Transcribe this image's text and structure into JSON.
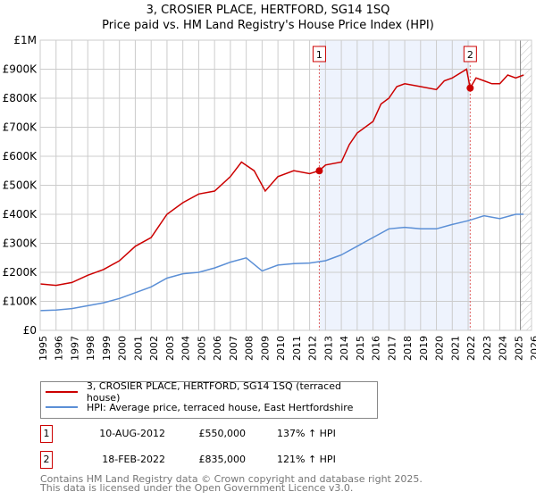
{
  "chart_data": {
    "type": "line",
    "title": "3, CROSIER PLACE, HERTFORD, SG14 1SQ",
    "subtitle": "Price paid vs. HM Land Registry's House Price Index (HPI)",
    "xlim": [
      1995,
      2026
    ],
    "ylim": [
      0,
      1000000
    ],
    "x_ticks": [
      "1995",
      "1996",
      "1997",
      "1998",
      "1999",
      "2000",
      "2001",
      "2002",
      "2003",
      "2004",
      "2005",
      "2006",
      "2007",
      "2008",
      "2009",
      "2010",
      "2011",
      "2012",
      "2013",
      "2014",
      "2015",
      "2016",
      "2017",
      "2018",
      "2019",
      "2020",
      "2021",
      "2022",
      "2023",
      "2024",
      "2025",
      "2026"
    ],
    "y_ticks": [
      {
        "v": 0,
        "label": "£0"
      },
      {
        "v": 100000,
        "label": "£100K"
      },
      {
        "v": 200000,
        "label": "£200K"
      },
      {
        "v": 300000,
        "label": "£300K"
      },
      {
        "v": 400000,
        "label": "£400K"
      },
      {
        "v": 500000,
        "label": "£500K"
      },
      {
        "v": 600000,
        "label": "£600K"
      },
      {
        "v": 700000,
        "label": "£700K"
      },
      {
        "v": 800000,
        "label": "£800K"
      },
      {
        "v": 900000,
        "label": "£900K"
      },
      {
        "v": 1000000,
        "label": "£1M"
      }
    ],
    "grid": true,
    "series": [
      {
        "name": "3, CROSIER PLACE, HERTFORD, SG14 1SQ (terraced house)",
        "color": "#cc0000",
        "x": [
          1995,
          1996,
          1997,
          1998,
          1999,
          2000,
          2001,
          2002,
          2003,
          2004,
          2005,
          2006,
          2007,
          2007.7,
          2008.5,
          2009.2,
          2010,
          2011,
          2012,
          2012.6,
          2013,
          2014,
          2014.5,
          2015,
          2016,
          2016.5,
          2017,
          2017.5,
          2018,
          2019,
          2020,
          2020.5,
          2021,
          2021.9,
          2022.13,
          2022.5,
          2023,
          2023.5,
          2024,
          2024.5,
          2025,
          2025.5
        ],
        "y": [
          160000,
          155000,
          165000,
          190000,
          210000,
          240000,
          290000,
          320000,
          400000,
          440000,
          470000,
          480000,
          530000,
          580000,
          550000,
          480000,
          530000,
          550000,
          540000,
          550000,
          570000,
          580000,
          640000,
          680000,
          720000,
          780000,
          800000,
          840000,
          850000,
          840000,
          830000,
          860000,
          870000,
          900000,
          835000,
          870000,
          860000,
          850000,
          850000,
          880000,
          870000,
          880000
        ]
      },
      {
        "name": "HPI: Average price, terraced house, East Hertfordshire",
        "color": "#5b8fd6",
        "x": [
          1995,
          1996,
          1997,
          1998,
          1999,
          2000,
          2001,
          2002,
          2003,
          2004,
          2005,
          2006,
          2007,
          2008,
          2009,
          2010,
          2011,
          2012,
          2013,
          2014,
          2015,
          2016,
          2017,
          2018,
          2019,
          2020,
          2021,
          2022,
          2023,
          2024,
          2025,
          2025.5
        ],
        "y": [
          68000,
          70000,
          75000,
          85000,
          95000,
          110000,
          130000,
          150000,
          180000,
          195000,
          200000,
          215000,
          235000,
          250000,
          205000,
          225000,
          230000,
          232000,
          240000,
          260000,
          290000,
          320000,
          350000,
          355000,
          350000,
          350000,
          365000,
          378000,
          395000,
          385000,
          400000,
          400000
        ]
      }
    ],
    "sales": [
      {
        "id": "1",
        "x": 2012.61,
        "price": 550000,
        "date": "10-AUG-2012",
        "price_label": "£550,000",
        "hpi": "137% ↑ HPI"
      },
      {
        "id": "2",
        "x": 2022.13,
        "price": 835000,
        "date": "18-FEB-2022",
        "price_label": "£835,000",
        "hpi": "121% ↑ HPI"
      }
    ],
    "forecast_start": 2025.3,
    "legend_position": "below"
  },
  "legend": {
    "red": "3, CROSIER PLACE, HERTFORD, SG14 1SQ (terraced house)",
    "blue": "HPI: Average price, terraced house, East Hertfordshire"
  },
  "footer": {
    "line1": "Contains HM Land Registry data © Crown copyright and database right 2025.",
    "line2": "This data is licensed under the Open Government Licence v3.0."
  }
}
